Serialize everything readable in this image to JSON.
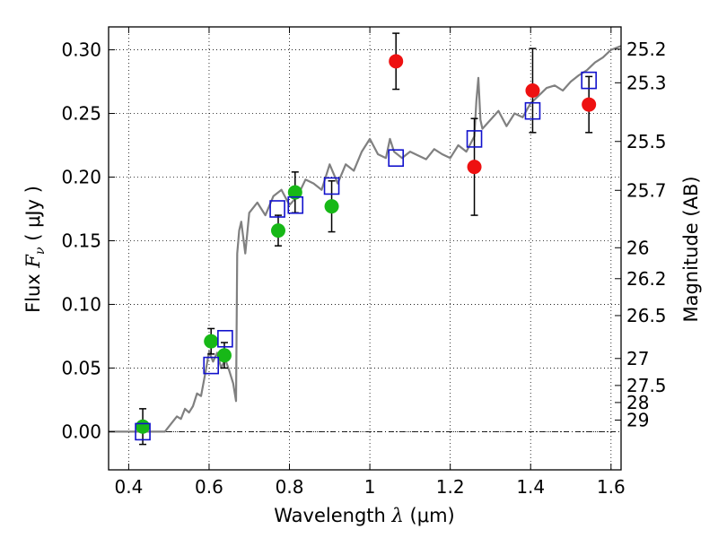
{
  "chart_data": {
    "type": "scatter",
    "xlabel_prefix": "Wavelength",
    "xlabel_symbol": "λ",
    "xlabel_unit": "(μm)",
    "ylabel_prefix": "Flux",
    "ylabel_symbol": "F",
    "ylabel_subscript": "ν",
    "ylabel_unit": "( μJy )",
    "y2label": "Magnitude (AB)",
    "xlim": [
      0.35,
      1.625
    ],
    "ylim": [
      -0.03,
      0.318
    ],
    "grid": true,
    "x_ticks": [
      0.4,
      0.6,
      0.8,
      1.0,
      1.2,
      1.4,
      1.6
    ],
    "x_tick_labels": [
      "0.4",
      "0.6",
      "0.8",
      "1",
      "1.2",
      "1.4",
      "1.6"
    ],
    "y_ticks": [
      0.0,
      0.05,
      0.1,
      0.15,
      0.2,
      0.25,
      0.3
    ],
    "y_tick_labels": [
      "0.00",
      "0.05",
      "0.10",
      "0.15",
      "0.20",
      "0.25",
      "0.30"
    ],
    "mag_ticks": [
      {
        "label": "25.2",
        "flux": 0.3005
      },
      {
        "label": "25.3",
        "flux": 0.2741
      },
      {
        "label": "25.5",
        "flux": 0.228
      },
      {
        "label": "25.7",
        "flux": 0.1896
      },
      {
        "label": "26",
        "flux": 0.1445
      },
      {
        "label": "26.2",
        "flux": 0.1202
      },
      {
        "label": "26.5",
        "flux": 0.0912
      },
      {
        "label": "27",
        "flux": 0.0575
      },
      {
        "label": "27.5",
        "flux": 0.0363
      },
      {
        "label": "28",
        "flux": 0.0229
      },
      {
        "label": "29",
        "flux": 0.0091
      }
    ],
    "colors": {
      "model": "#808080",
      "green": "#17b817",
      "red": "#ee1111",
      "model_points": "#1111cc",
      "errorbar": "#000000",
      "zero_line": "#000000"
    },
    "series": [
      {
        "color_key": "model",
        "kind": "line",
        "x": [
          0.35,
          0.49,
          0.5,
          0.52,
          0.53,
          0.54,
          0.55,
          0.56,
          0.57,
          0.58,
          0.59,
          0.6,
          0.61,
          0.62,
          0.63,
          0.64,
          0.65,
          0.66,
          0.667,
          0.67,
          0.675,
          0.68,
          0.69,
          0.7,
          0.72,
          0.74,
          0.76,
          0.78,
          0.8,
          0.82,
          0.84,
          0.86,
          0.88,
          0.9,
          0.92,
          0.94,
          0.96,
          0.98,
          1.0,
          1.02,
          1.04,
          1.05,
          1.06,
          1.08,
          1.1,
          1.12,
          1.14,
          1.16,
          1.18,
          1.2,
          1.22,
          1.24,
          1.26,
          1.265,
          1.27,
          1.275,
          1.28,
          1.3,
          1.32,
          1.34,
          1.36,
          1.38,
          1.4,
          1.42,
          1.44,
          1.46,
          1.48,
          1.5,
          1.52,
          1.54,
          1.56,
          1.58,
          1.6,
          1.625
        ],
        "y": [
          0.0,
          0.0,
          0.004,
          0.012,
          0.01,
          0.018,
          0.015,
          0.02,
          0.03,
          0.028,
          0.045,
          0.063,
          0.055,
          0.062,
          0.05,
          0.057,
          0.048,
          0.038,
          0.024,
          0.14,
          0.158,
          0.165,
          0.14,
          0.172,
          0.18,
          0.17,
          0.185,
          0.19,
          0.178,
          0.185,
          0.198,
          0.195,
          0.19,
          0.21,
          0.195,
          0.21,
          0.205,
          0.22,
          0.23,
          0.218,
          0.215,
          0.23,
          0.22,
          0.215,
          0.22,
          0.217,
          0.214,
          0.222,
          0.218,
          0.215,
          0.225,
          0.22,
          0.232,
          0.26,
          0.278,
          0.245,
          0.238,
          0.245,
          0.252,
          0.24,
          0.25,
          0.247,
          0.258,
          0.264,
          0.27,
          0.272,
          0.268,
          0.275,
          0.28,
          0.284,
          0.29,
          0.294,
          0.3,
          0.303
        ]
      },
      {
        "color_key": "green",
        "kind": "points_with_errors",
        "points": [
          {
            "x": 0.435,
            "y": 0.004,
            "err": 0.014
          },
          {
            "x": 0.605,
            "y": 0.071,
            "err": 0.01
          },
          {
            "x": 0.638,
            "y": 0.06,
            "err": 0.01
          },
          {
            "x": 0.772,
            "y": 0.158,
            "err": 0.012
          },
          {
            "x": 0.814,
            "y": 0.188,
            "err": 0.016
          },
          {
            "x": 0.905,
            "y": 0.177,
            "err": 0.02
          }
        ]
      },
      {
        "color_key": "red",
        "kind": "points_with_errors",
        "points": [
          {
            "x": 1.065,
            "y": 0.291,
            "err": 0.022
          },
          {
            "x": 1.26,
            "y": 0.208,
            "err": 0.038
          },
          {
            "x": 1.405,
            "y": 0.268,
            "err": 0.033
          },
          {
            "x": 1.545,
            "y": 0.257,
            "err": 0.022
          }
        ]
      },
      {
        "color_key": "model_points",
        "kind": "squares",
        "points": [
          {
            "x": 0.435,
            "y": 0.0
          },
          {
            "x": 0.605,
            "y": 0.052
          },
          {
            "x": 0.64,
            "y": 0.073
          },
          {
            "x": 0.77,
            "y": 0.175
          },
          {
            "x": 0.815,
            "y": 0.178
          },
          {
            "x": 0.905,
            "y": 0.193
          },
          {
            "x": 1.065,
            "y": 0.215
          },
          {
            "x": 1.26,
            "y": 0.23
          },
          {
            "x": 1.405,
            "y": 0.252
          },
          {
            "x": 1.545,
            "y": 0.276
          }
        ]
      }
    ]
  }
}
